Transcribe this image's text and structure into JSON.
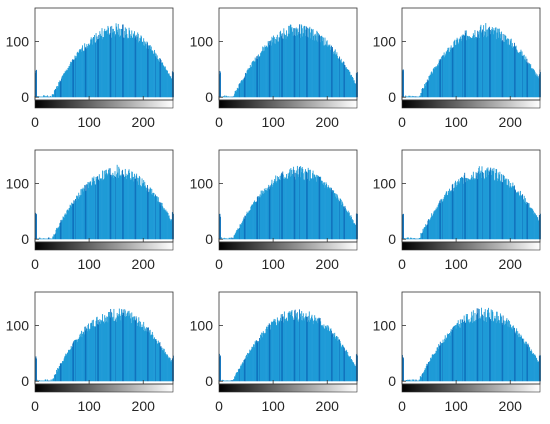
{
  "figure": {
    "layout": "3x3 grid of histograms",
    "bar_color": "#1f9bd7",
    "bar_color_dark": "#0f72bd",
    "axes_color": "#333333",
    "colorbar": "grayscale, black to white"
  },
  "chart_data": [
    {
      "type": "bar",
      "title": "",
      "xlabel": "",
      "ylabel": "",
      "xlim": [
        0,
        255
      ],
      "ylim": [
        -5,
        160
      ],
      "xticks": [
        "0",
        "100",
        "200"
      ],
      "yticks": [
        "0",
        "100"
      ],
      "bin_width": 1,
      "shape_peak": 130,
      "shape_center": 150,
      "shape_halfwidth": 120,
      "edge_value": 40,
      "seed": 1
    },
    {
      "type": "bar",
      "title": "",
      "xlabel": "",
      "ylabel": "",
      "xlim": [
        0,
        255
      ],
      "ylim": [
        -5,
        160
      ],
      "xticks": [
        "0",
        "100",
        "200"
      ],
      "yticks": [
        "0",
        "100"
      ],
      "bin_width": 1,
      "shape_peak": 130,
      "shape_center": 145,
      "shape_halfwidth": 120,
      "edge_value": 40,
      "seed": 2
    },
    {
      "type": "bar",
      "title": "",
      "xlabel": "",
      "ylabel": "",
      "xlim": [
        0,
        255
      ],
      "ylim": [
        -5,
        160
      ],
      "xticks": [
        "0",
        "100",
        "200"
      ],
      "yticks": [
        "0",
        "100"
      ],
      "bin_width": 1,
      "shape_peak": 130,
      "shape_center": 150,
      "shape_halfwidth": 120,
      "edge_value": 40,
      "seed": 3
    },
    {
      "type": "bar",
      "title": "",
      "xlabel": "",
      "ylabel": "",
      "xlim": [
        0,
        255
      ],
      "ylim": [
        -5,
        160
      ],
      "xticks": [
        "0",
        "100",
        "200"
      ],
      "yticks": [
        "0",
        "100"
      ],
      "bin_width": 1,
      "shape_peak": 130,
      "shape_center": 150,
      "shape_halfwidth": 120,
      "edge_value": 40,
      "seed": 4
    },
    {
      "type": "bar",
      "title": "",
      "xlabel": "",
      "ylabel": "",
      "xlim": [
        0,
        255
      ],
      "ylim": [
        -5,
        160
      ],
      "xticks": [
        "0",
        "100",
        "200"
      ],
      "yticks": [
        "0",
        "100"
      ],
      "bin_width": 1,
      "shape_peak": 130,
      "shape_center": 145,
      "shape_halfwidth": 120,
      "edge_value": 40,
      "seed": 5
    },
    {
      "type": "bar",
      "title": "",
      "xlabel": "",
      "ylabel": "",
      "xlim": [
        0,
        255
      ],
      "ylim": [
        -5,
        160
      ],
      "xticks": [
        "0",
        "100",
        "200"
      ],
      "yticks": [
        "0",
        "100"
      ],
      "bin_width": 1,
      "shape_peak": 130,
      "shape_center": 150,
      "shape_halfwidth": 120,
      "edge_value": 40,
      "seed": 6
    },
    {
      "type": "bar",
      "title": "",
      "xlabel": "",
      "ylabel": "",
      "xlim": [
        0,
        255
      ],
      "ylim": [
        -5,
        160
      ],
      "xticks": [
        "0",
        "100",
        "200"
      ],
      "yticks": [
        "0",
        "100"
      ],
      "bin_width": 1,
      "shape_peak": 130,
      "shape_center": 150,
      "shape_halfwidth": 120,
      "edge_value": 40,
      "seed": 7
    },
    {
      "type": "bar",
      "title": "",
      "xlabel": "",
      "ylabel": "",
      "xlim": [
        0,
        255
      ],
      "ylim": [
        -5,
        160
      ],
      "xticks": [
        "0",
        "100",
        "200"
      ],
      "yticks": [
        "0",
        "100"
      ],
      "bin_width": 1,
      "shape_peak": 130,
      "shape_center": 145,
      "shape_halfwidth": 120,
      "edge_value": 40,
      "seed": 8
    },
    {
      "type": "bar",
      "title": "",
      "xlabel": "",
      "ylabel": "",
      "xlim": [
        0,
        255
      ],
      "ylim": [
        -5,
        160
      ],
      "xticks": [
        "0",
        "100",
        "200"
      ],
      "yticks": [
        "0",
        "100"
      ],
      "bin_width": 1,
      "shape_peak": 130,
      "shape_center": 150,
      "shape_halfwidth": 120,
      "edge_value": 40,
      "seed": 9
    }
  ]
}
